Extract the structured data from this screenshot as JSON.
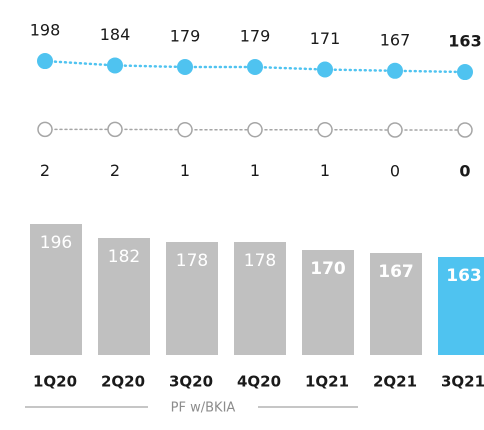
{
  "chart_data": [
    {
      "type": "dot-line",
      "fill": true,
      "color": "#4fc3f0",
      "label_position": "above",
      "categories": [
        "1Q20",
        "2Q20",
        "3Q20",
        "4Q20",
        "1Q21",
        "2Q21",
        "3Q21"
      ],
      "values": [
        198,
        184,
        179,
        179,
        171,
        167,
        163
      ],
      "bold_labels": [
        false,
        false,
        false,
        false,
        false,
        false,
        true
      ],
      "ylim": [
        74,
        265
      ]
    },
    {
      "type": "dot-line",
      "fill": false,
      "color": "#a6a6a6",
      "label_position": "below",
      "categories": [
        "1Q20",
        "2Q20",
        "3Q20",
        "4Q20",
        "1Q21",
        "2Q21",
        "3Q21"
      ],
      "values": [
        2,
        2,
        1,
        1,
        1,
        0,
        0
      ],
      "bold_labels": [
        false,
        false,
        false,
        false,
        false,
        false,
        true
      ],
      "ylim": [
        -64,
        64
      ]
    },
    {
      "type": "bar",
      "categories": [
        "1Q20",
        "2Q20",
        "3Q20",
        "4Q20",
        "1Q21",
        "2Q21",
        "3Q21"
      ],
      "values": [
        196,
        182,
        178,
        178,
        170,
        167,
        163
      ],
      "colors": [
        "#c0c0c0",
        "#c0c0c0",
        "#c0c0c0",
        "#c0c0c0",
        "#c0c0c0",
        "#c0c0c0",
        "#4fc3f0"
      ],
      "bold_labels": [
        false,
        false,
        false,
        false,
        true,
        true,
        true
      ],
      "ylim": [
        65,
        200
      ]
    }
  ],
  "footer": "PF w/BKIA"
}
